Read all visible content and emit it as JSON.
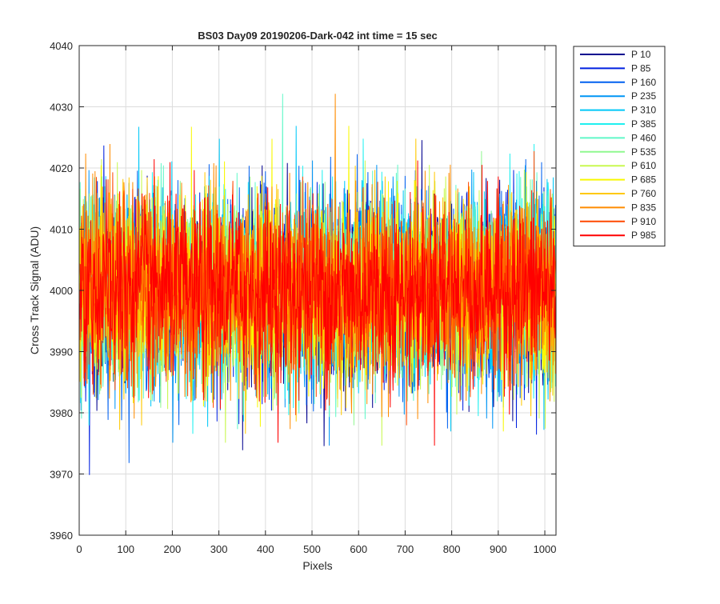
{
  "chart_data": {
    "type": "line",
    "title": "BS03 Day09 20190206-Dark-042 int time = 15 sec",
    "xlabel": "Pixels",
    "ylabel": "Cross Track Signal (ADU)",
    "xlim": [
      0,
      1024
    ],
    "ylim": [
      3960,
      4040
    ],
    "xticks": [
      0,
      100,
      200,
      300,
      400,
      500,
      600,
      700,
      800,
      900,
      1000
    ],
    "yticks": [
      3960,
      3970,
      3980,
      3990,
      4000,
      4010,
      4020,
      4030,
      4040
    ],
    "grid": true,
    "legend_position": "outside-top-right",
    "noise_model": {
      "mean": 4000,
      "std": 7.5,
      "points_per_series": 1024
    },
    "series": [
      {
        "name": "P 10",
        "color": "#00008f"
      },
      {
        "name": "P 85",
        "color": "#0020e0"
      },
      {
        "name": "P 160",
        "color": "#0060f0"
      },
      {
        "name": "P 235",
        "color": "#0095f5"
      },
      {
        "name": "P 310",
        "color": "#00c8f8"
      },
      {
        "name": "P 385",
        "color": "#20f0f0"
      },
      {
        "name": "P 460",
        "color": "#60f8c8"
      },
      {
        "name": "P 535",
        "color": "#90f890"
      },
      {
        "name": "P 610",
        "color": "#c8f850"
      },
      {
        "name": "P 685",
        "color": "#f8f800"
      },
      {
        "name": "P 760",
        "color": "#ffc800"
      },
      {
        "name": "P 835",
        "color": "#ff8c00"
      },
      {
        "name": "P 910",
        "color": "#ff4800"
      },
      {
        "name": "P 985",
        "color": "#ff0000"
      }
    ]
  }
}
